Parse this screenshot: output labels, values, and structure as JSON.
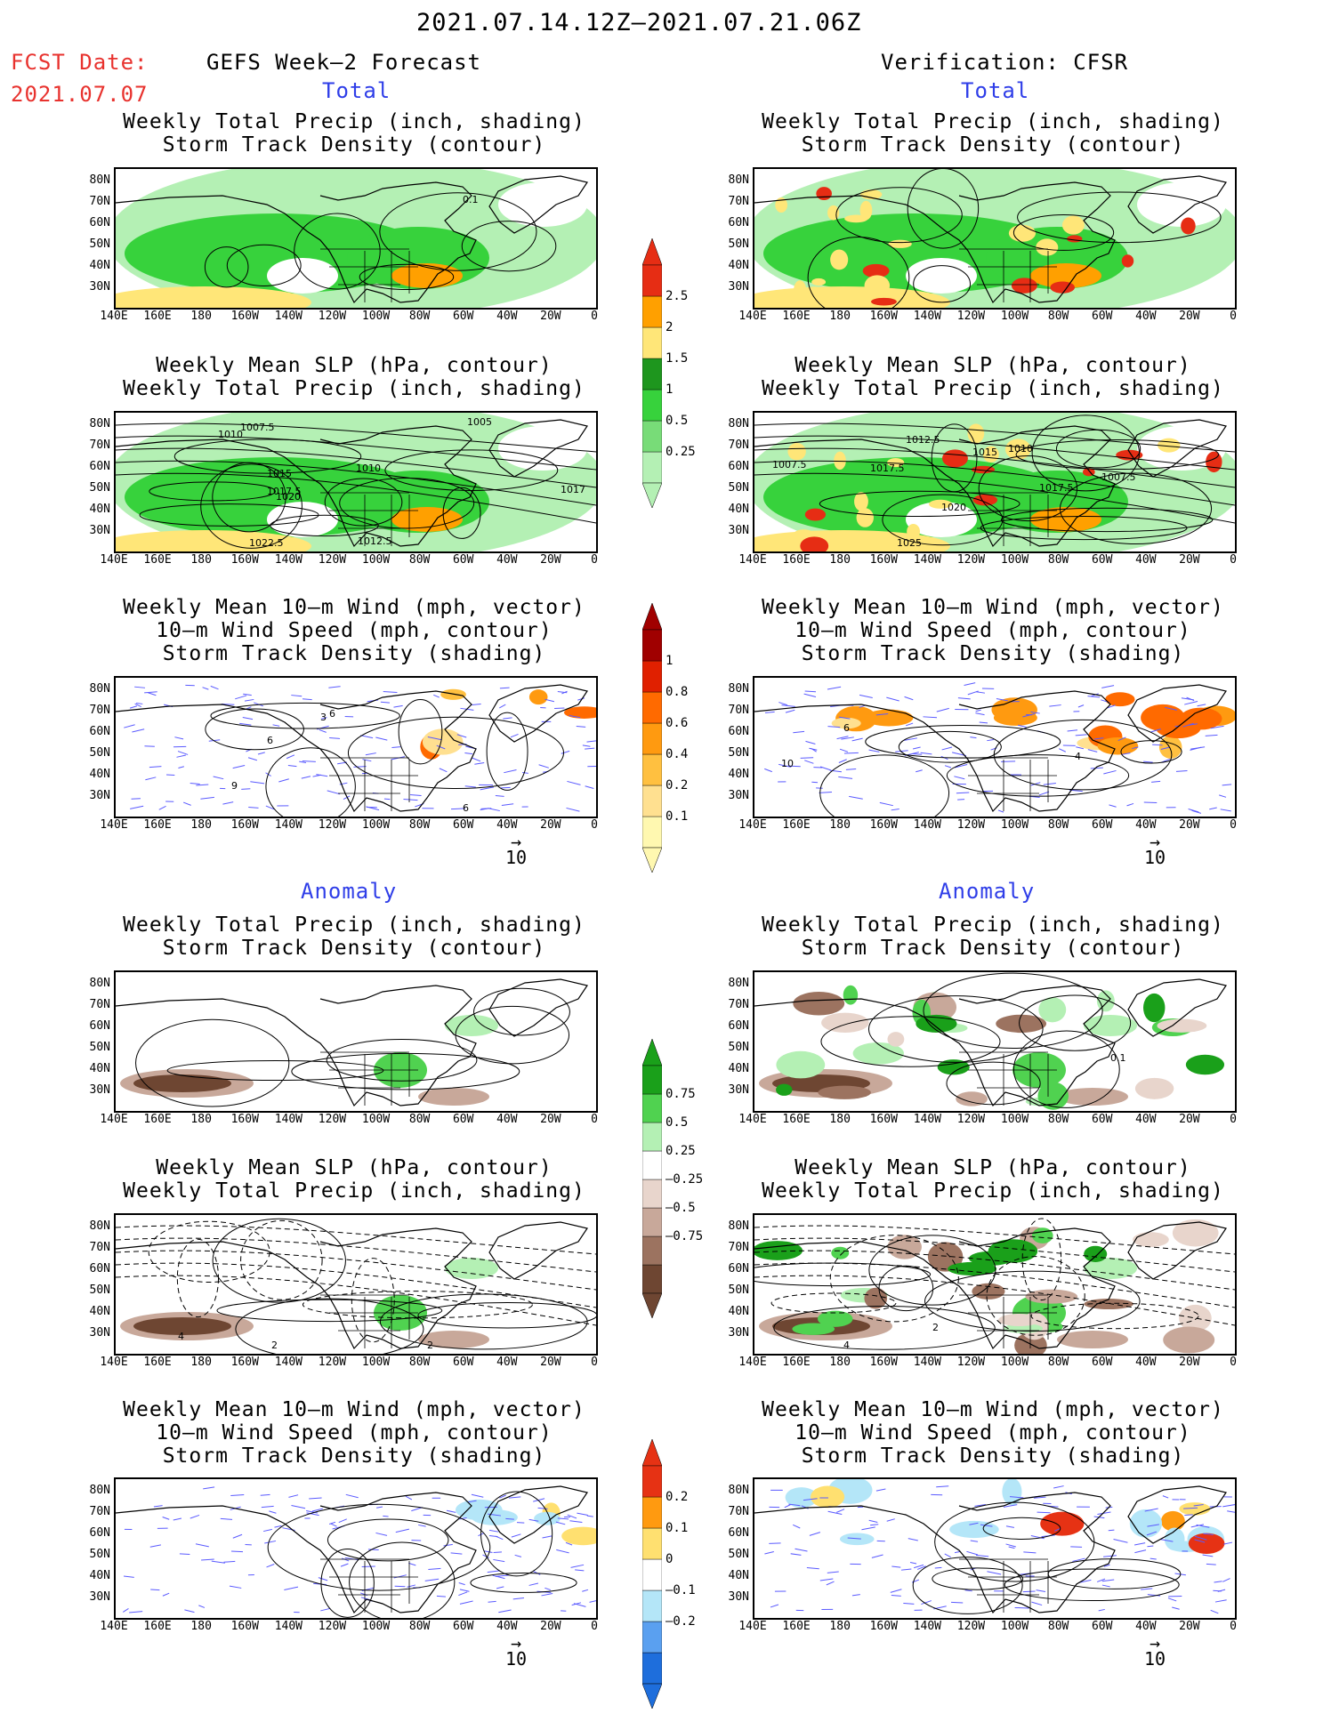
{
  "header": {
    "date_range": "2021.07.14.12Z—2021.07.21.06Z",
    "fcst_label": "FCST Date:",
    "fcst_date": "2021.07.07",
    "left_title": "GEFS Week—2 Forecast",
    "right_title": "Verification: CFSR"
  },
  "sections": {
    "total": "Total",
    "anomaly": "Anomaly"
  },
  "panel_titles": {
    "precip_storm": [
      "Weekly Total Precip (inch, shading)",
      "Storm Track Density (contour)"
    ],
    "slp_precip": [
      "Weekly Mean SLP (hPa, contour)",
      "Weekly Total Precip (inch, shading)"
    ],
    "wind_storm": [
      "Weekly Mean 10—m Wind (mph, vector)",
      "10—m Wind Speed (mph, contour)",
      "Storm Track Density (shading)"
    ]
  },
  "lat_labels": [
    "80N",
    "70N",
    "60N",
    "50N",
    "40N",
    "30N"
  ],
  "lon_labels": [
    "140E",
    "160E",
    "180",
    "160W",
    "140W",
    "120W",
    "100W",
    "80W",
    "60W",
    "40W",
    "20W",
    "0"
  ],
  "vector_scale": "10",
  "contour_labels": {
    "fcst_total_precip": [
      "0.1"
    ],
    "fcst_total_slp": [
      "1007.5",
      "1010",
      "1005",
      "1015",
      "1010",
      "1017.5",
      "1020",
      "1017",
      "1012.5",
      "1022.5"
    ],
    "fcst_total_wind": [
      "3",
      "6",
      "9",
      "6",
      "6"
    ],
    "obs_total_slp": [
      "1012.5",
      "1007.5",
      "1017.5",
      "1015",
      "1010",
      "1017.5",
      "1007.5",
      "1020",
      "1025"
    ],
    "obs_total_wind": [
      "6",
      "10",
      "4"
    ],
    "fcst_anom_slp": [
      "4",
      "2",
      "2"
    ],
    "obs_anom_precip": [
      "0.1"
    ],
    "obs_anom_slp": [
      "2",
      "4"
    ]
  },
  "colorbars": {
    "total_precip": {
      "colors": [
        "#b4f0b4",
        "#78dc78",
        "#37d23c",
        "#1e961e",
        "#ffe678",
        "#ffa000",
        "#e62d14"
      ],
      "labels": [
        "0.25",
        "0.5",
        "1",
        "1.5",
        "2",
        "2.5"
      ]
    },
    "total_storm": {
      "colors": [
        "#fff8b0",
        "#ffe090",
        "#ffc040",
        "#ff9a10",
        "#ff6a00",
        "#e02000",
        "#a00000"
      ],
      "labels": [
        "0.1",
        "0.2",
        "0.4",
        "0.6",
        "0.8",
        "1"
      ]
    },
    "anom_precip": {
      "colors": [
        "#6e4632",
        "#9c7360",
        "#c8a89a",
        "#e8d5cc",
        "#ffffff",
        "#b4f0b4",
        "#50d250",
        "#1aa01a"
      ],
      "labels": [
        "—0.75",
        "—0.5",
        "—0.25",
        "0.25",
        "0.5",
        "0.75"
      ]
    },
    "anom_storm": {
      "colors": [
        "#1e6edc",
        "#5aa0f0",
        "#b4e6f8",
        "#ffffff",
        "#ffe070",
        "#ff9a10",
        "#e63214"
      ],
      "labels": [
        "—0.2",
        "—0.1",
        "0",
        "0.1",
        "0.2"
      ]
    }
  }
}
